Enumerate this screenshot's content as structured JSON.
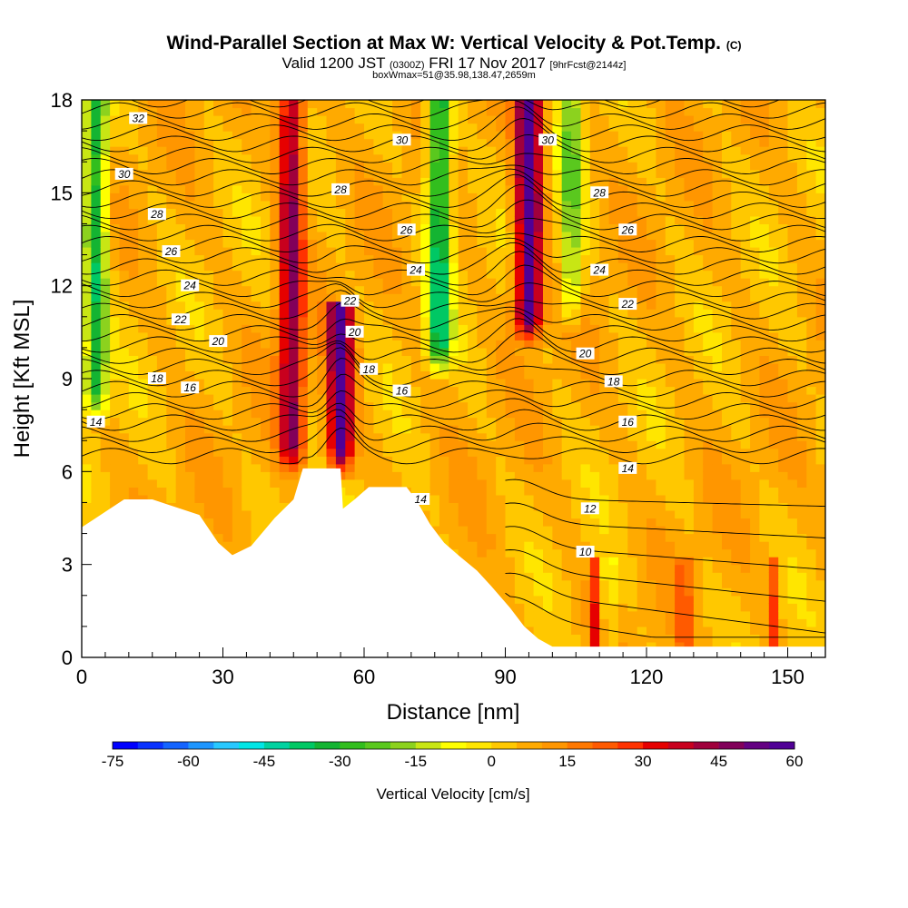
{
  "title": {
    "main": "Wind-Parallel Section at Max W: Vertical Velocity & Pot.Temp.",
    "copyright": "(C)",
    "valid_prefix": "Valid 1200 JST",
    "valid_utc": "(0300Z)",
    "valid_date": "FRI 17 Nov 2017",
    "forecast": "[9hrFcst@2144z]",
    "box": "boxWmax=51@35.98,138.47,2659m"
  },
  "chart_data": {
    "type": "heatmap",
    "xlabel": "Distance [nm]",
    "ylabel": "Height [Kft MSL]",
    "xlim": [
      0,
      158
    ],
    "ylim": [
      0,
      18
    ],
    "x_ticks": [
      "0",
      "30",
      "60",
      "90",
      "120",
      "150"
    ],
    "y_ticks": [
      "0",
      "3",
      "6",
      "9",
      "12",
      "15",
      "18"
    ],
    "colorbar": {
      "label": "Vertical Velocity [cm/s]",
      "min": -75,
      "max": 60,
      "step": 5,
      "tick_labels": [
        "-75",
        "-60",
        "-45",
        "-30",
        "-15",
        "0",
        "15",
        "30",
        "45",
        "60"
      ],
      "colors": [
        "#0000ff",
        "#0a32ff",
        "#1464ff",
        "#1e96ff",
        "#28c8ff",
        "#00e6e6",
        "#00d2a0",
        "#00c864",
        "#14b432",
        "#32be1e",
        "#5ac81e",
        "#8cd21e",
        "#c8e614",
        "#ffff00",
        "#ffe600",
        "#ffc800",
        "#ffaa00",
        "#ff9600",
        "#ff7800",
        "#ff5a00",
        "#ff3200",
        "#e60000",
        "#c8001e",
        "#a0003c",
        "#82005a",
        "#640082",
        "#500096"
      ]
    },
    "updraft_bands": [
      {
        "x": 44.5,
        "w_max": 40,
        "top": 18,
        "bottom": 6.3
      },
      {
        "x": 55,
        "w_max": 55,
        "top": 11,
        "bottom": 6.1
      },
      {
        "x": 95,
        "w_max": 60,
        "top": 18,
        "bottom": 10.5
      }
    ],
    "downdraft_bands": [
      {
        "x": 3,
        "w_min": -40,
        "top": 18,
        "bottom": 8
      },
      {
        "x": 76,
        "w_min": -45,
        "top": 18,
        "bottom": 9.5
      },
      {
        "x": 104,
        "w_min": -25,
        "top": 18,
        "bottom": 11
      }
    ],
    "terrain": [
      [
        0,
        4.2
      ],
      [
        3,
        4.5
      ],
      [
        6,
        4.8
      ],
      [
        9,
        5.1
      ],
      [
        15,
        5.1
      ],
      [
        19,
        4.9
      ],
      [
        25,
        4.6
      ],
      [
        29,
        3.7
      ],
      [
        32,
        3.3
      ],
      [
        36,
        3.6
      ],
      [
        41,
        4.5
      ],
      [
        45,
        5.1
      ],
      [
        47,
        6.1
      ],
      [
        55,
        6.1
      ],
      [
        55.5,
        4.8
      ],
      [
        58,
        5.1
      ],
      [
        61,
        5.5
      ],
      [
        69,
        5.5
      ],
      [
        71,
        5.1
      ],
      [
        74,
        4.3
      ],
      [
        77,
        3.7
      ],
      [
        80,
        3.3
      ],
      [
        84,
        2.8
      ],
      [
        87,
        2.3
      ],
      [
        91,
        1.6
      ],
      [
        94,
        1.0
      ],
      [
        97,
        0.6
      ],
      [
        100,
        0.35
      ],
      [
        158,
        0.35
      ]
    ],
    "theta_labels": [
      {
        "text": "32",
        "x": 12,
        "y": 17.4
      },
      {
        "text": "30",
        "x": 9,
        "y": 15.6
      },
      {
        "text": "28",
        "x": 16,
        "y": 14.3
      },
      {
        "text": "26",
        "x": 19,
        "y": 13.1
      },
      {
        "text": "24",
        "x": 23,
        "y": 12.0
      },
      {
        "text": "22",
        "x": 21,
        "y": 10.9
      },
      {
        "text": "20",
        "x": 29,
        "y": 10.2
      },
      {
        "text": "18",
        "x": 16,
        "y": 9.0
      },
      {
        "text": "16",
        "x": 23,
        "y": 8.7
      },
      {
        "text": "14",
        "x": 3,
        "y": 7.6
      },
      {
        "text": "30",
        "x": 68,
        "y": 16.7
      },
      {
        "text": "28",
        "x": 55,
        "y": 15.1
      },
      {
        "text": "26",
        "x": 69,
        "y": 13.8
      },
      {
        "text": "24",
        "x": 71,
        "y": 12.5
      },
      {
        "text": "22",
        "x": 57,
        "y": 11.5
      },
      {
        "text": "20",
        "x": 58,
        "y": 10.5
      },
      {
        "text": "18",
        "x": 61,
        "y": 9.3
      },
      {
        "text": "16",
        "x": 68,
        "y": 8.6
      },
      {
        "text": "14",
        "x": 72,
        "y": 5.1
      },
      {
        "text": "30",
        "x": 99,
        "y": 16.7
      },
      {
        "text": "28",
        "x": 110,
        "y": 15.0
      },
      {
        "text": "26",
        "x": 116,
        "y": 13.8
      },
      {
        "text": "24",
        "x": 110,
        "y": 12.5
      },
      {
        "text": "22",
        "x": 116,
        "y": 11.4
      },
      {
        "text": "20",
        "x": 107,
        "y": 9.8
      },
      {
        "text": "18",
        "x": 113,
        "y": 8.9
      },
      {
        "text": "16",
        "x": 116,
        "y": 7.6
      },
      {
        "text": "14",
        "x": 116,
        "y": 6.1
      },
      {
        "text": "12",
        "x": 108,
        "y": 4.8
      },
      {
        "text": "10",
        "x": 107,
        "y": 3.4
      }
    ]
  }
}
